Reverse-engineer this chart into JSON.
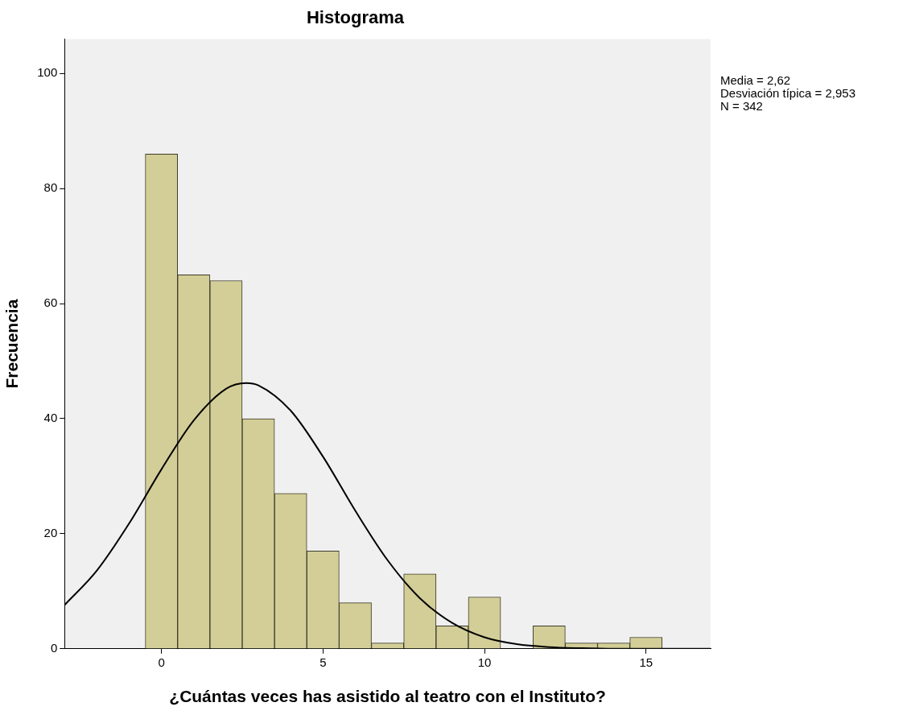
{
  "chart_data": {
    "type": "histogram",
    "title": "Histograma",
    "xlabel": "¿Cuántas veces has asistido al teatro con el Instituto?",
    "ylabel": "Frecuencia",
    "bins": [
      -0.5,
      0.5,
      1.5,
      2.5,
      3.5,
      4.5,
      5.5,
      6.5,
      7.5,
      8.5,
      9.5,
      10.5,
      11.5,
      12.5,
      13.5,
      14.5,
      15.5
    ],
    "values": [
      86,
      65,
      64,
      40,
      27,
      17,
      8,
      1,
      13,
      4,
      9,
      0,
      4,
      1,
      1,
      2
    ],
    "color": "#d3ce97",
    "series": [
      {
        "type": "line",
        "color": "#000000",
        "x": [
          -3,
          -2,
          -1,
          0,
          1,
          2,
          2.62,
          3,
          4,
          5,
          6,
          7,
          8,
          9,
          10,
          11,
          12,
          13,
          14,
          15,
          16,
          17
        ],
        "values": [
          7.6,
          13.6,
          21.8,
          31.2,
          39.7,
          45.2,
          46.2,
          45.8,
          41.4,
          33.4,
          24.0,
          15.4,
          8.8,
          4.5,
          2.0,
          0.8,
          0.3,
          0.1,
          0,
          0,
          0,
          0
        ]
      }
    ],
    "xlim": [
      -3,
      17
    ],
    "xticks": [
      0,
      5,
      10,
      15
    ],
    "ylim": [
      0,
      106
    ],
    "yticks": [
      0,
      20,
      40,
      60,
      80,
      100
    ],
    "grid": false,
    "legend": false,
    "annotations": [
      "Media = 2,62",
      "Desviación típica = 2,953",
      "N = 342"
    ]
  }
}
